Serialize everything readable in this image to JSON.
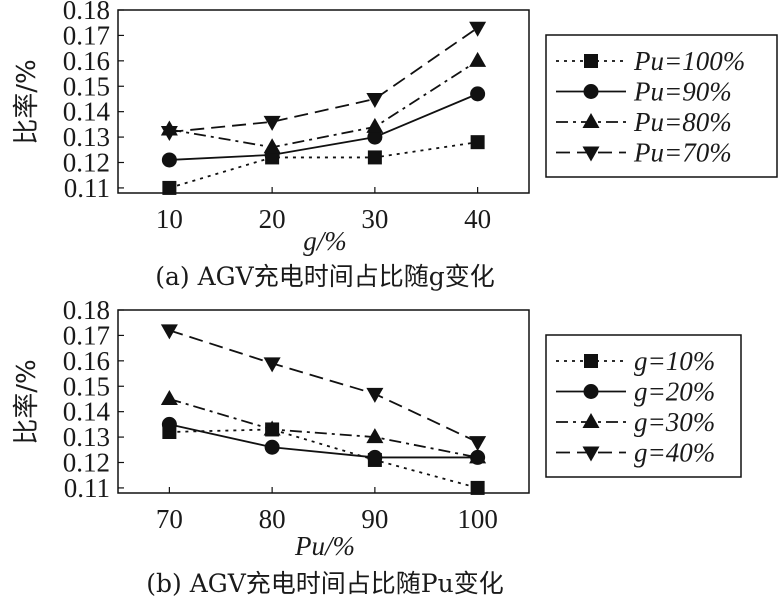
{
  "chart_data": [
    {
      "type": "line",
      "caption": "(a) AGV充电时间占比随g变化",
      "xlabel": "g/%",
      "ylabel": "比率/%",
      "x": [
        10,
        20,
        30,
        40
      ],
      "xticks": [
        "10",
        "20",
        "30",
        "40"
      ],
      "yticks": [
        "0.11",
        "0.12",
        "0.13",
        "0.14",
        "0.15",
        "0.16",
        "0.17",
        "0.18"
      ],
      "ylim": [
        0.108,
        0.18
      ],
      "xlim": [
        5,
        45
      ],
      "legend_position": "right",
      "series": [
        {
          "name": "Pu=100%",
          "values": [
            0.11,
            0.122,
            0.122,
            0.128
          ],
          "marker": "square",
          "dash": "dotted"
        },
        {
          "name": "Pu=90%",
          "values": [
            0.121,
            0.123,
            0.13,
            0.147
          ],
          "marker": "circle",
          "dash": "solid"
        },
        {
          "name": "Pu=80%",
          "values": [
            0.133,
            0.126,
            0.134,
            0.16
          ],
          "marker": "triangle-up",
          "dash": "dashdot"
        },
        {
          "name": "Pu=70%",
          "values": [
            0.132,
            0.136,
            0.145,
            0.173
          ],
          "marker": "triangle-down",
          "dash": "dashed"
        }
      ]
    },
    {
      "type": "line",
      "caption": "(b) AGV充电时间占比随Pu变化",
      "xlabel": "Pu/%",
      "ylabel": "比率/%",
      "x": [
        70,
        80,
        90,
        100
      ],
      "xticks": [
        "70",
        "80",
        "90",
        "100"
      ],
      "yticks": [
        "0.11",
        "0.12",
        "0.13",
        "0.14",
        "0.15",
        "0.16",
        "0.17",
        "0.18"
      ],
      "ylim": [
        0.108,
        0.18
      ],
      "xlim": [
        65,
        105
      ],
      "legend_position": "right",
      "series": [
        {
          "name": "g=10%",
          "values": [
            0.132,
            0.133,
            0.121,
            0.11
          ],
          "marker": "square",
          "dash": "dotted"
        },
        {
          "name": "g=20%",
          "values": [
            0.135,
            0.126,
            0.122,
            0.122
          ],
          "marker": "circle",
          "dash": "solid"
        },
        {
          "name": "g=30%",
          "values": [
            0.145,
            0.133,
            0.13,
            0.122
          ],
          "marker": "triangle-up",
          "dash": "dashdot"
        },
        {
          "name": "g=40%",
          "values": [
            0.172,
            0.159,
            0.147,
            0.128
          ],
          "marker": "triangle-down",
          "dash": "dashed"
        }
      ]
    }
  ]
}
